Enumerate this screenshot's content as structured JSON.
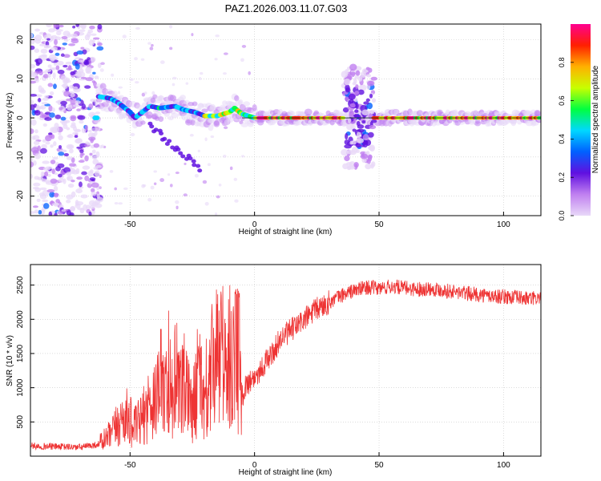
{
  "page_title": "PAZ1.2026.003.11.07.G03",
  "chart_data": [
    {
      "type": "heatmap",
      "title": "PAZ1.2026.003.11.07.G03",
      "xlabel": "Height of straight line (km)",
      "ylabel": "Frequency (Hz)",
      "xlim": [
        -90,
        115
      ],
      "ylim": [
        -25,
        24
      ],
      "xticks": [
        -50,
        0,
        50,
        100
      ],
      "yticks": [
        20,
        10,
        0,
        -10,
        -20
      ],
      "xtick_labels": [
        "-50",
        "0",
        "50",
        "100"
      ],
      "ytick_labels": [
        "20",
        "10",
        "0",
        "-10",
        "-20"
      ],
      "grid": true,
      "ridge": [
        {
          "x": -63,
          "f": 5.5
        },
        {
          "x": -58,
          "f": 5
        },
        {
          "x": -55,
          "f": 4
        },
        {
          "x": -52,
          "f": 2.5
        },
        {
          "x": -50,
          "f": 1.5
        },
        {
          "x": -48,
          "f": 0
        },
        {
          "x": -45,
          "f": 1.5
        },
        {
          "x": -42,
          "f": 3
        },
        {
          "x": -38,
          "f": 2.5
        },
        {
          "x": -32,
          "f": 3
        },
        {
          "x": -28,
          "f": 2
        },
        {
          "x": -24,
          "f": 1.5
        },
        {
          "x": -20,
          "f": 0.5
        },
        {
          "x": -15,
          "f": 0.5
        },
        {
          "x": -10,
          "f": 1.5
        },
        {
          "x": -8,
          "f": 2.5
        },
        {
          "x": -5,
          "f": 1
        },
        {
          "x": 0,
          "f": 0
        },
        {
          "x": 36,
          "f": 0
        },
        {
          "x": 50,
          "f": 0
        },
        {
          "x": 115,
          "f": 0
        }
      ],
      "colorbar": {
        "label": "Normalized spectral amplitude",
        "range": [
          0,
          1
        ],
        "ticks": [
          0.0,
          0.2,
          0.4,
          0.6,
          0.8
        ],
        "tick_labels": [
          "0.0",
          "0.2",
          "0.4",
          "0.6",
          "0.8"
        ],
        "colors": [
          "#e8d8f8",
          "#c080f0",
          "#6010e0",
          "#0060ff",
          "#00d8ff",
          "#00ff40",
          "#c8ff00",
          "#ffb000",
          "#ff2000",
          "#ff0090"
        ]
      }
    },
    {
      "type": "line",
      "xlabel": "Height of straight line (km)",
      "ylabel": "SNR (10 * v/v)",
      "xlim": [
        -90,
        115
      ],
      "ylim": [
        0,
        2800
      ],
      "xticks": [
        -50,
        0,
        50,
        100
      ],
      "yticks": [
        500,
        1000,
        1500,
        2000,
        2500
      ],
      "xtick_labels": [
        "-50",
        "0",
        "50",
        "100"
      ],
      "ytick_labels": [
        "500",
        "1000",
        "1500",
        "2000",
        "2500"
      ],
      "grid": true,
      "line_color": "#ee3333",
      "series": [
        {
          "name": "SNR",
          "x": [
            -90,
            -80,
            -70,
            -63,
            -58,
            -55,
            -52,
            -48,
            -45,
            -42,
            -38,
            -35,
            -32,
            -28,
            -25,
            -22,
            -19,
            -17,
            -15,
            -12,
            -10,
            -8,
            -6,
            -5,
            -4,
            -2,
            0,
            2,
            5,
            8,
            10,
            15,
            20,
            25,
            30,
            35,
            40,
            45,
            50,
            55,
            60,
            65,
            70,
            75,
            80,
            85,
            90,
            95,
            100,
            105,
            110,
            115
          ],
          "y": [
            150,
            140,
            130,
            170,
            300,
            450,
            600,
            420,
            550,
            800,
            900,
            1000,
            850,
            950,
            700,
            1100,
            700,
            1300,
            1400,
            1350,
            1300,
            1500,
            900,
            850,
            1000,
            1100,
            1150,
            1250,
            1400,
            1550,
            1700,
            1850,
            2000,
            2150,
            2250,
            2350,
            2420,
            2470,
            2450,
            2480,
            2460,
            2440,
            2450,
            2430,
            2400,
            2380,
            2360,
            2340,
            2330,
            2320,
            2300,
            2310
          ]
        }
      ]
    }
  ]
}
